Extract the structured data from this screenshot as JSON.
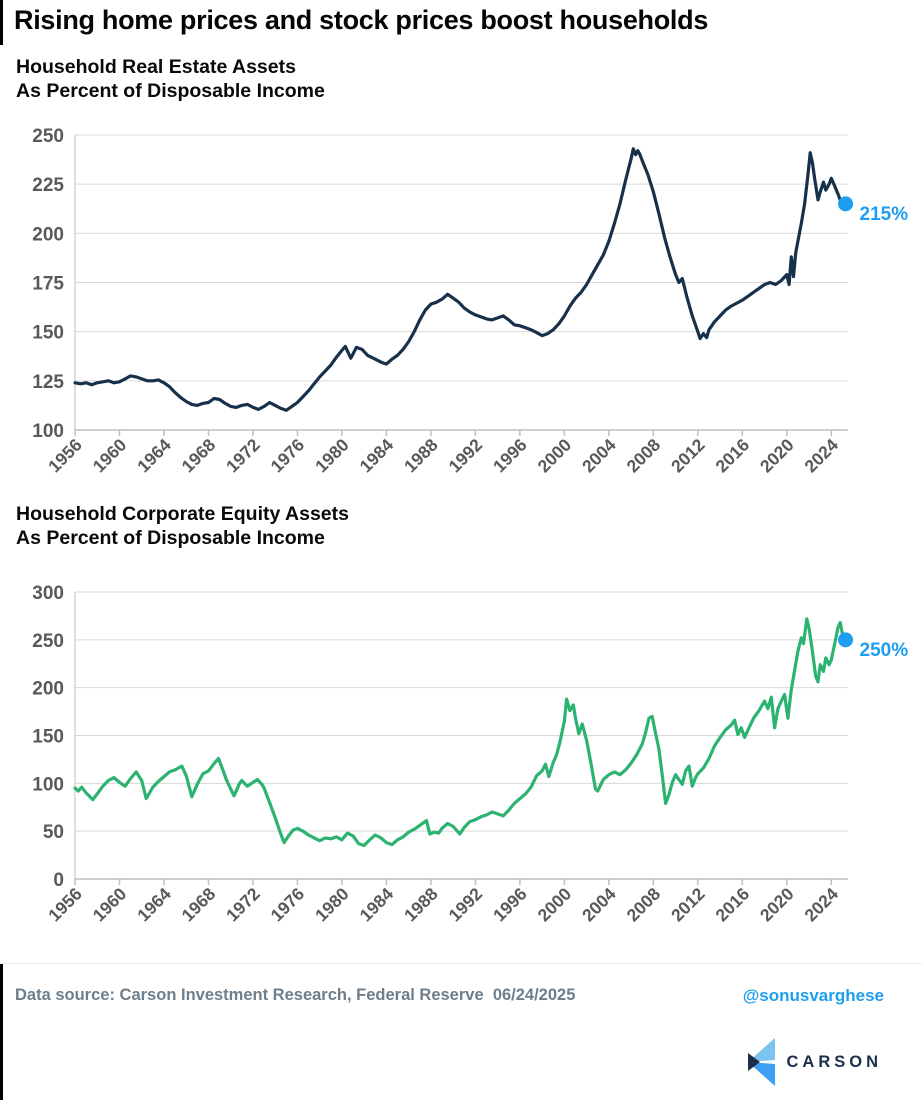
{
  "page": {
    "title": "Rising home prices and stock prices boost households"
  },
  "colors": {
    "navy_line": "#17314b",
    "green_line": "#2cb271",
    "accent_blue": "#1f9df2",
    "tick_gray": "#595959",
    "gridline": "#d9d9d9",
    "axis": "#bfbfbf",
    "footer_gray": "#6d7e8c",
    "logo_navy": "#1c2e4a",
    "logo_light_blue": "#7cc3ef",
    "logo_mid_blue": "#3da0f2"
  },
  "footer": {
    "source_label": "Data source:",
    "source_value": "Carson Investment Research, Federal Reserve",
    "source_date": "06/24/2025",
    "handle": "@sonusvarghese",
    "logo_text": "CARSON"
  },
  "chart_data": [
    {
      "type": "line",
      "title": "Household Real Estate Assets",
      "subtitle": "As Percent of Disposable Income",
      "line_color": "#17314b",
      "end_label": "215%",
      "end_value": 215,
      "ylim": [
        100,
        250
      ],
      "y_ticks": [
        250,
        225,
        200,
        175,
        150,
        125,
        100
      ],
      "xlim": [
        1956,
        2025.5
      ],
      "x_ticks": [
        1956,
        1960,
        1964,
        1968,
        1972,
        1976,
        1980,
        1984,
        1988,
        1992,
        1996,
        2000,
        2004,
        2008,
        2012,
        2016,
        2020,
        2024
      ],
      "grid": true,
      "legend": "none",
      "points": [
        [
          1956,
          124
        ],
        [
          1956.5,
          123.5
        ],
        [
          1957,
          124
        ],
        [
          1957.5,
          123
        ],
        [
          1958,
          124
        ],
        [
          1958.5,
          124.5
        ],
        [
          1959,
          125
        ],
        [
          1959.5,
          124
        ],
        [
          1960,
          124.5
        ],
        [
          1960.5,
          126
        ],
        [
          1961,
          127.5
        ],
        [
          1961.5,
          127
        ],
        [
          1962,
          126
        ],
        [
          1962.5,
          125
        ],
        [
          1963,
          125
        ],
        [
          1963.5,
          125.5
        ],
        [
          1964,
          124
        ],
        [
          1964.5,
          122
        ],
        [
          1965,
          119
        ],
        [
          1965.5,
          116.5
        ],
        [
          1966,
          114.5
        ],
        [
          1966.5,
          113
        ],
        [
          1967,
          112.5
        ],
        [
          1967.5,
          113.5
        ],
        [
          1968,
          114
        ],
        [
          1968.5,
          116
        ],
        [
          1969,
          115.5
        ],
        [
          1969.5,
          113.5
        ],
        [
          1970,
          112
        ],
        [
          1970.5,
          111.5
        ],
        [
          1971,
          112.5
        ],
        [
          1971.5,
          113
        ],
        [
          1972,
          111.5
        ],
        [
          1972.5,
          110.5
        ],
        [
          1973,
          112
        ],
        [
          1973.5,
          114
        ],
        [
          1974,
          112.5
        ],
        [
          1974.5,
          111
        ],
        [
          1975,
          110
        ],
        [
          1975.5,
          112
        ],
        [
          1976,
          114
        ],
        [
          1976.5,
          117
        ],
        [
          1977,
          120
        ],
        [
          1977.5,
          123.5
        ],
        [
          1978,
          127
        ],
        [
          1978.5,
          130
        ],
        [
          1979,
          133
        ],
        [
          1979.5,
          137
        ],
        [
          1980,
          140.5
        ],
        [
          1980.3,
          142.5
        ],
        [
          1980.8,
          136.5
        ],
        [
          1981.3,
          142
        ],
        [
          1981.8,
          141
        ],
        [
          1982.3,
          138
        ],
        [
          1983,
          136
        ],
        [
          1983.5,
          134.5
        ],
        [
          1984,
          133.5
        ],
        [
          1984.5,
          136
        ],
        [
          1985,
          138
        ],
        [
          1985.5,
          141
        ],
        [
          1986,
          145
        ],
        [
          1986.5,
          150
        ],
        [
          1987,
          156
        ],
        [
          1987.5,
          161
        ],
        [
          1988,
          164
        ],
        [
          1988.5,
          165
        ],
        [
          1989,
          166.5
        ],
        [
          1989.5,
          169
        ],
        [
          1990,
          167
        ],
        [
          1990.5,
          165
        ],
        [
          1991,
          162
        ],
        [
          1991.5,
          160
        ],
        [
          1992,
          158.5
        ],
        [
          1992.5,
          157.5
        ],
        [
          1993,
          156.5
        ],
        [
          1993.5,
          156
        ],
        [
          1994,
          157
        ],
        [
          1994.5,
          158
        ],
        [
          1995,
          156
        ],
        [
          1995.5,
          153.5
        ],
        [
          1996,
          153
        ],
        [
          1996.5,
          152
        ],
        [
          1997,
          151
        ],
        [
          1997.5,
          149.5
        ],
        [
          1998,
          148
        ],
        [
          1998.5,
          149
        ],
        [
          1999,
          151
        ],
        [
          1999.5,
          154
        ],
        [
          2000,
          158
        ],
        [
          2000.5,
          163
        ],
        [
          2001,
          167
        ],
        [
          2001.5,
          170
        ],
        [
          2002,
          174
        ],
        [
          2002.5,
          179
        ],
        [
          2003,
          184
        ],
        [
          2003.5,
          189
        ],
        [
          2004,
          196
        ],
        [
          2004.5,
          205
        ],
        [
          2005,
          215
        ],
        [
          2005.5,
          227
        ],
        [
          2006,
          238
        ],
        [
          2006.2,
          243
        ],
        [
          2006.4,
          240
        ],
        [
          2006.6,
          242
        ],
        [
          2006.8,
          240
        ],
        [
          2007,
          237
        ],
        [
          2007.5,
          230
        ],
        [
          2008,
          221
        ],
        [
          2008.5,
          210
        ],
        [
          2009,
          198
        ],
        [
          2009.5,
          188
        ],
        [
          2010,
          179
        ],
        [
          2010.3,
          175
        ],
        [
          2010.6,
          177
        ],
        [
          2011,
          168
        ],
        [
          2011.5,
          158
        ],
        [
          2012,
          150
        ],
        [
          2012.2,
          146.5
        ],
        [
          2012.5,
          149
        ],
        [
          2012.8,
          147
        ],
        [
          2013,
          151
        ],
        [
          2013.5,
          155
        ],
        [
          2014,
          158
        ],
        [
          2014.5,
          161
        ],
        [
          2015,
          163
        ],
        [
          2015.5,
          164.5
        ],
        [
          2016,
          166
        ],
        [
          2016.5,
          168
        ],
        [
          2017,
          170
        ],
        [
          2017.5,
          172
        ],
        [
          2018,
          174
        ],
        [
          2018.5,
          175
        ],
        [
          2019,
          174
        ],
        [
          2019.5,
          176
        ],
        [
          2020,
          179
        ],
        [
          2020.2,
          174
        ],
        [
          2020.4,
          188
        ],
        [
          2020.6,
          178
        ],
        [
          2020.8,
          190
        ],
        [
          2021,
          196
        ],
        [
          2021.3,
          205
        ],
        [
          2021.6,
          215
        ],
        [
          2021.9,
          230
        ],
        [
          2022.1,
          241
        ],
        [
          2022.3,
          236
        ],
        [
          2022.5,
          228
        ],
        [
          2022.8,
          217
        ],
        [
          2023,
          221
        ],
        [
          2023.3,
          226
        ],
        [
          2023.5,
          222
        ],
        [
          2023.8,
          225
        ],
        [
          2024,
          228
        ],
        [
          2024.3,
          224
        ],
        [
          2024.6,
          220
        ],
        [
          2024.8,
          217
        ],
        [
          2025.1,
          215
        ]
      ]
    },
    {
      "type": "line",
      "title": "Household Corporate Equity Assets",
      "subtitle": "As Percent of Disposable Income",
      "line_color": "#2cb271",
      "end_label": "250%",
      "end_value": 250,
      "ylim": [
        0,
        300
      ],
      "y_ticks": [
        300,
        250,
        200,
        150,
        100,
        50,
        0
      ],
      "xlim": [
        1956,
        2025.5
      ],
      "x_ticks": [
        1956,
        1960,
        1964,
        1968,
        1972,
        1976,
        1980,
        1984,
        1988,
        1992,
        1996,
        2000,
        2004,
        2008,
        2012,
        2016,
        2020,
        2024
      ],
      "grid": true,
      "legend": "none",
      "points": [
        [
          1956,
          95
        ],
        [
          1956.3,
          92
        ],
        [
          1956.6,
          96
        ],
        [
          1957,
          90
        ],
        [
          1957.6,
          83
        ],
        [
          1958,
          89
        ],
        [
          1958.5,
          97
        ],
        [
          1959,
          103
        ],
        [
          1959.5,
          106
        ],
        [
          1960,
          101
        ],
        [
          1960.5,
          97
        ],
        [
          1961,
          105
        ],
        [
          1961.5,
          112
        ],
        [
          1962,
          103
        ],
        [
          1962.4,
          84
        ],
        [
          1962.8,
          92
        ],
        [
          1963,
          96
        ],
        [
          1963.5,
          102
        ],
        [
          1964,
          107
        ],
        [
          1964.5,
          112
        ],
        [
          1965,
          114
        ],
        [
          1965.6,
          118
        ],
        [
          1966,
          108
        ],
        [
          1966.5,
          86
        ],
        [
          1967,
          99
        ],
        [
          1967.5,
          110
        ],
        [
          1968,
          113
        ],
        [
          1968.6,
          122
        ],
        [
          1968.9,
          126
        ],
        [
          1969.2,
          117
        ],
        [
          1969.6,
          104
        ],
        [
          1970,
          94
        ],
        [
          1970.3,
          87
        ],
        [
          1970.8,
          100
        ],
        [
          1971,
          103
        ],
        [
          1971.5,
          97
        ],
        [
          1972,
          101
        ],
        [
          1972.4,
          104
        ],
        [
          1972.8,
          99
        ],
        [
          1973,
          95
        ],
        [
          1973.5,
          80
        ],
        [
          1974,
          64
        ],
        [
          1974.5,
          47
        ],
        [
          1974.8,
          38
        ],
        [
          1975.2,
          45
        ],
        [
          1975.6,
          51
        ],
        [
          1976,
          53
        ],
        [
          1976.5,
          50
        ],
        [
          1977,
          46
        ],
        [
          1977.5,
          43
        ],
        [
          1978,
          40
        ],
        [
          1978.5,
          43
        ],
        [
          1979,
          42
        ],
        [
          1979.5,
          44
        ],
        [
          1980,
          41
        ],
        [
          1980.5,
          48
        ],
        [
          1981,
          45
        ],
        [
          1981.5,
          37
        ],
        [
          1982,
          35
        ],
        [
          1982.5,
          41
        ],
        [
          1983,
          46
        ],
        [
          1983.5,
          43
        ],
        [
          1984,
          38
        ],
        [
          1984.5,
          36
        ],
        [
          1985,
          41
        ],
        [
          1985.5,
          44
        ],
        [
          1986,
          49
        ],
        [
          1986.5,
          52
        ],
        [
          1987,
          56
        ],
        [
          1987.6,
          61
        ],
        [
          1987.9,
          47
        ],
        [
          1988.3,
          49
        ],
        [
          1988.7,
          48
        ],
        [
          1989,
          53
        ],
        [
          1989.5,
          58
        ],
        [
          1990,
          55
        ],
        [
          1990.6,
          47
        ],
        [
          1991,
          54
        ],
        [
          1991.5,
          60
        ],
        [
          1992,
          62
        ],
        [
          1992.5,
          65
        ],
        [
          1993,
          67
        ],
        [
          1993.5,
          70
        ],
        [
          1994,
          68
        ],
        [
          1994.5,
          66
        ],
        [
          1995,
          72
        ],
        [
          1995.5,
          79
        ],
        [
          1996,
          84
        ],
        [
          1996.5,
          89
        ],
        [
          1997,
          96
        ],
        [
          1997.5,
          108
        ],
        [
          1998,
          113
        ],
        [
          1998.3,
          120
        ],
        [
          1998.6,
          107
        ],
        [
          1999,
          122
        ],
        [
          1999.3,
          130
        ],
        [
          1999.6,
          143
        ],
        [
          2000,
          165
        ],
        [
          2000.2,
          188
        ],
        [
          2000.5,
          176
        ],
        [
          2000.8,
          182
        ],
        [
          2001,
          168
        ],
        [
          2001.3,
          152
        ],
        [
          2001.6,
          162
        ],
        [
          2002,
          145
        ],
        [
          2002.4,
          120
        ],
        [
          2002.8,
          94
        ],
        [
          2003,
          92
        ],
        [
          2003.5,
          104
        ],
        [
          2004,
          109
        ],
        [
          2004.5,
          112
        ],
        [
          2005,
          109
        ],
        [
          2005.5,
          114
        ],
        [
          2006,
          121
        ],
        [
          2006.5,
          130
        ],
        [
          2007,
          141
        ],
        [
          2007.3,
          153
        ],
        [
          2007.6,
          168
        ],
        [
          2007.9,
          170
        ],
        [
          2008.2,
          152
        ],
        [
          2008.5,
          136
        ],
        [
          2008.8,
          108
        ],
        [
          2009.1,
          79
        ],
        [
          2009.4,
          88
        ],
        [
          2009.7,
          101
        ],
        [
          2010,
          109
        ],
        [
          2010.3,
          104
        ],
        [
          2010.6,
          99
        ],
        [
          2010.9,
          113
        ],
        [
          2011.2,
          118
        ],
        [
          2011.5,
          97
        ],
        [
          2011.8,
          106
        ],
        [
          2012,
          110
        ],
        [
          2012.5,
          116
        ],
        [
          2013,
          126
        ],
        [
          2013.5,
          139
        ],
        [
          2014,
          148
        ],
        [
          2014.5,
          156
        ],
        [
          2015,
          161
        ],
        [
          2015.3,
          166
        ],
        [
          2015.6,
          151
        ],
        [
          2015.9,
          158
        ],
        [
          2016.2,
          148
        ],
        [
          2016.6,
          158
        ],
        [
          2017,
          168
        ],
        [
          2017.5,
          176
        ],
        [
          2018,
          186
        ],
        [
          2018.3,
          178
        ],
        [
          2018.6,
          190
        ],
        [
          2018.9,
          158
        ],
        [
          2019.2,
          178
        ],
        [
          2019.5,
          186
        ],
        [
          2019.8,
          193
        ],
        [
          2020.1,
          168
        ],
        [
          2020.4,
          198
        ],
        [
          2020.7,
          218
        ],
        [
          2021,
          238
        ],
        [
          2021.3,
          252
        ],
        [
          2021.5,
          246
        ],
        [
          2021.8,
          272
        ],
        [
          2022,
          262
        ],
        [
          2022.3,
          238
        ],
        [
          2022.6,
          212
        ],
        [
          2022.8,
          206
        ],
        [
          2023,
          224
        ],
        [
          2023.3,
          217
        ],
        [
          2023.5,
          231
        ],
        [
          2023.8,
          224
        ],
        [
          2024,
          229
        ],
        [
          2024.3,
          246
        ],
        [
          2024.6,
          263
        ],
        [
          2024.8,
          268
        ],
        [
          2025.1,
          250
        ]
      ]
    }
  ]
}
